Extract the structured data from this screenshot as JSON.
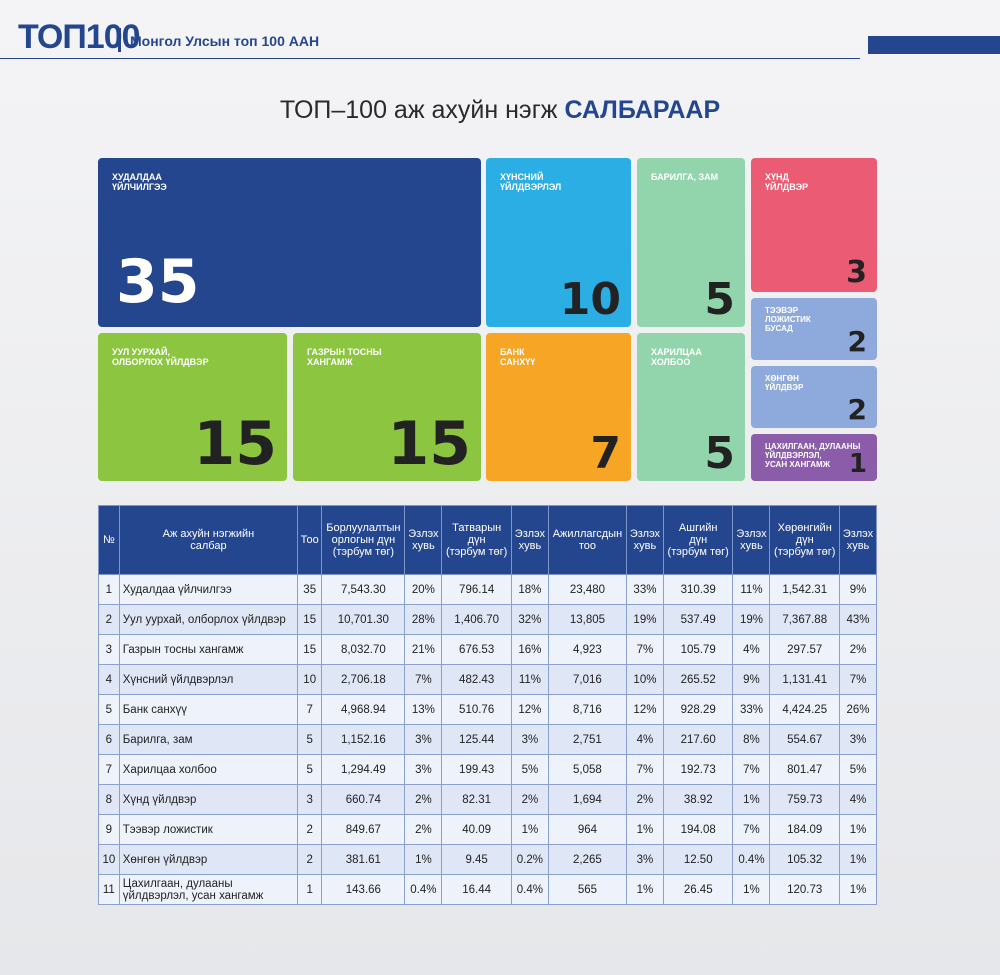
{
  "header": {
    "logo": "ТОП100",
    "subtitle": "Монгол Улсын топ 100 ААН"
  },
  "title": {
    "main": "ТОП–100 аж ахуйн нэгж",
    "bold": "САЛБАРААР"
  },
  "tiles": [
    {
      "label": "ХУДАЛДАА\nҮЙЛЧИЛГЭЭ",
      "count": "35"
    },
    {
      "label": "ХҮНСНИЙ\nҮЙЛДВЭРЛЭЛ",
      "count": "10"
    },
    {
      "label": "БАРИЛГА, ЗАМ",
      "count": "5"
    },
    {
      "label": "ХҮНД\nҮЙЛДВЭР",
      "count": "3"
    },
    {
      "label": "УУЛ УУРХАЙ,\nОЛБОРЛОХ ҮЙЛДВЭР",
      "count": "15"
    },
    {
      "label": "ГАЗРЫН ТОСНЫ\nХАНГАМЖ",
      "count": "15"
    },
    {
      "label": "БАНК\nСАНХҮҮ",
      "count": "7"
    },
    {
      "label": "ХАРИЛЦАА\nХОЛБОО",
      "count": "5"
    },
    {
      "label": "ТЭЭВЭР\nЛОЖИСТИК\nБУСАД",
      "count": "2"
    },
    {
      "label": "ХӨНГӨН\nҮЙЛДВЭР",
      "count": "2"
    },
    {
      "label": "ЦАХИЛГААН, ДУЛААНЫ\nҮЙЛДВЭРЛЭЛ,\nУСАН ХАНГАМЖ",
      "count": "1"
    }
  ],
  "table": {
    "columns": [
      "№",
      "Аж ахуйн нэгжийн\nсалбар",
      "Тоо",
      "Борлуулалтын\nорлогын дүн\n(тэрбум төг)",
      "Эзлэх\nхувь",
      "Татварын\nдүн\n(тэрбум төг)",
      "Эзлэх\nхувь",
      "Ажиллагсдын\nтоо",
      "Эзлэх\nхувь",
      "Ашгийн\nдүн\n(тэрбум төг)",
      "Эзлэх\nхувь",
      "Хөрөнгийн\nдүн\n(тэрбум төг)",
      "Эзлэх\nхувь"
    ],
    "rows": [
      [
        "1",
        "Худалдаа үйлчилгээ",
        "35",
        "7,543.30",
        "20%",
        "796.14",
        "18%",
        "23,480",
        "33%",
        "310.39",
        "11%",
        "1,542.31",
        "9%"
      ],
      [
        "2",
        "Уул уурхай, олборлох үйлдвэр",
        "15",
        "10,701.30",
        "28%",
        "1,406.70",
        "32%",
        "13,805",
        "19%",
        "537.49",
        "19%",
        "7,367.88",
        "43%"
      ],
      [
        "3",
        "Газрын тосны хангамж",
        "15",
        "8,032.70",
        "21%",
        "676.53",
        "16%",
        "4,923",
        "7%",
        "105.79",
        "4%",
        "297.57",
        "2%"
      ],
      [
        "4",
        "Хүнсний үйлдвэрлэл",
        "10",
        "2,706.18",
        "7%",
        "482.43",
        "11%",
        "7,016",
        "10%",
        "265.52",
        "9%",
        "1,131.41",
        "7%"
      ],
      [
        "5",
        "Банк санхүү",
        "7",
        "4,968.94",
        "13%",
        "510.76",
        "12%",
        "8,716",
        "12%",
        "928.29",
        "33%",
        "4,424.25",
        "26%"
      ],
      [
        "6",
        "Барилга, зам",
        "5",
        "1,152.16",
        "3%",
        "125.44",
        "3%",
        "2,751",
        "4%",
        "217.60",
        "8%",
        "554.67",
        "3%"
      ],
      [
        "7",
        "Харилцаа холбоо",
        "5",
        "1,294.49",
        "3%",
        "199.43",
        "5%",
        "5,058",
        "7%",
        "192.73",
        "7%",
        "801.47",
        "5%"
      ],
      [
        "8",
        "Хүнд үйлдвэр",
        "3",
        "660.74",
        "2%",
        "82.31",
        "2%",
        "1,694",
        "2%",
        "38.92",
        "1%",
        "759.73",
        "4%"
      ],
      [
        "9",
        "Тээвэр ложистик",
        "2",
        "849.67",
        "2%",
        "40.09",
        "1%",
        "964",
        "1%",
        "194.08",
        "7%",
        "184.09",
        "1%"
      ],
      [
        "10",
        "Хөнгөн үйлдвэр",
        "2",
        "381.61",
        "1%",
        "9.45",
        "0.2%",
        "2,265",
        "3%",
        "12.50",
        "0.4%",
        "105.32",
        "1%"
      ],
      [
        "11",
        "Цахилгаан, дулааны\nүйлдвэрлэл, усан хангамж",
        "1",
        "143.66",
        "0.4%",
        "16.44",
        "0.4%",
        "565",
        "1%",
        "26.45",
        "1%",
        "120.73",
        "1%"
      ]
    ]
  }
}
